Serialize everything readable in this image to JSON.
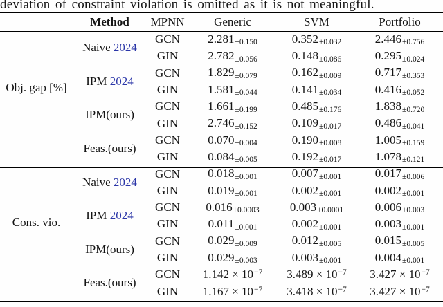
{
  "caption": "deviation of constraint violation is omitted as it is not meaningful.",
  "colors": {
    "text": "#141414",
    "citation_link": "#2b36a8",
    "rule_heavy": "#000000",
    "rule_light": "#5a5a5a"
  },
  "table": {
    "headers": {
      "rowgroup": "",
      "method": "Method",
      "mpnn": "MPNN",
      "cols": [
        "Generic",
        "SVM",
        "Portfolio"
      ]
    },
    "sections": [
      {
        "label": "Obj. gap [%]",
        "groups": [
          {
            "method": "Naive",
            "cite": "2024",
            "rows": [
              {
                "mpnn": "GCN",
                "cells": [
                  {
                    "v": "2.281",
                    "pm": "0.150"
                  },
                  {
                    "v": "0.352",
                    "pm": "0.032"
                  },
                  {
                    "v": "2.446",
                    "pm": "0.756"
                  }
                ]
              },
              {
                "mpnn": "GIN",
                "cells": [
                  {
                    "v": "2.782",
                    "pm": "0.056"
                  },
                  {
                    "v": "0.148",
                    "pm": "0.086"
                  },
                  {
                    "v": "0.295",
                    "pm": "0.024"
                  }
                ]
              }
            ]
          },
          {
            "method": "IPM",
            "cite": "2024",
            "rows": [
              {
                "mpnn": "GCN",
                "cells": [
                  {
                    "v": "1.829",
                    "pm": "0.079"
                  },
                  {
                    "v": "0.162",
                    "pm": "0.009"
                  },
                  {
                    "v": "0.717",
                    "pm": "0.353"
                  }
                ]
              },
              {
                "mpnn": "GIN",
                "cells": [
                  {
                    "v": "1.581",
                    "pm": "0.044"
                  },
                  {
                    "v": "0.141",
                    "pm": "0.034"
                  },
                  {
                    "v": "0.416",
                    "pm": "0.052"
                  }
                ]
              }
            ]
          },
          {
            "method": "IPM(ours)",
            "cite": null,
            "rows": [
              {
                "mpnn": "GCN",
                "cells": [
                  {
                    "v": "1.661",
                    "pm": "0.199"
                  },
                  {
                    "v": "0.485",
                    "pm": "0.176"
                  },
                  {
                    "v": "1.838",
                    "pm": "0.720"
                  }
                ]
              },
              {
                "mpnn": "GIN",
                "cells": [
                  {
                    "v": "2.746",
                    "pm": "0.152"
                  },
                  {
                    "v": "0.109",
                    "pm": "0.017"
                  },
                  {
                    "v": "0.486",
                    "pm": "0.041"
                  }
                ]
              }
            ]
          },
          {
            "method": "Feas.(ours)",
            "cite": null,
            "rows": [
              {
                "mpnn": "GCN",
                "cells": [
                  {
                    "v": "0.070",
                    "pm": "0.004"
                  },
                  {
                    "v": "0.190",
                    "pm": "0.008"
                  },
                  {
                    "v": "1.005",
                    "pm": "0.159"
                  }
                ]
              },
              {
                "mpnn": "GIN",
                "cells": [
                  {
                    "v": "0.084",
                    "pm": "0.005"
                  },
                  {
                    "v": "0.192",
                    "pm": "0.017"
                  },
                  {
                    "v": "1.078",
                    "pm": "0.121"
                  }
                ]
              }
            ]
          }
        ]
      },
      {
        "label": "Cons. vio.",
        "groups": [
          {
            "method": "Naive",
            "cite": "2024",
            "rows": [
              {
                "mpnn": "GCN",
                "cells": [
                  {
                    "v": "0.018",
                    "pm": "0.001"
                  },
                  {
                    "v": "0.007",
                    "pm": "0.001"
                  },
                  {
                    "v": "0.017",
                    "pm": "0.006"
                  }
                ]
              },
              {
                "mpnn": "GIN",
                "cells": [
                  {
                    "v": "0.019",
                    "pm": "0.001"
                  },
                  {
                    "v": "0.002",
                    "pm": "0.001"
                  },
                  {
                    "v": "0.002",
                    "pm": "0.001"
                  }
                ]
              }
            ]
          },
          {
            "method": "IPM",
            "cite": "2024",
            "rows": [
              {
                "mpnn": "GCN",
                "cells": [
                  {
                    "v": "0.016",
                    "pm": "0.0003"
                  },
                  {
                    "v": "0.003",
                    "pm": "0.0001"
                  },
                  {
                    "v": "0.006",
                    "pm": "0.003"
                  }
                ]
              },
              {
                "mpnn": "GIN",
                "cells": [
                  {
                    "v": "0.011",
                    "pm": "0.001"
                  },
                  {
                    "v": "0.002",
                    "pm": "0.001"
                  },
                  {
                    "v": "0.003",
                    "pm": "0.001"
                  }
                ]
              }
            ]
          },
          {
            "method": "IPM(ours)",
            "cite": null,
            "rows": [
              {
                "mpnn": "GCN",
                "cells": [
                  {
                    "v": "0.029",
                    "pm": "0.009"
                  },
                  {
                    "v": "0.012",
                    "pm": "0.005"
                  },
                  {
                    "v": "0.015",
                    "pm": "0.005"
                  }
                ]
              },
              {
                "mpnn": "GIN",
                "cells": [
                  {
                    "v": "0.029",
                    "pm": "0.003"
                  },
                  {
                    "v": "0.003",
                    "pm": "0.001"
                  },
                  {
                    "v": "0.004",
                    "pm": "0.001"
                  }
                ]
              }
            ]
          },
          {
            "method": "Feas.(ours)",
            "cite": null,
            "rows": [
              {
                "mpnn": "GCN",
                "cells": [
                  {
                    "sci": "1.142",
                    "exp": "−7"
                  },
                  {
                    "sci": "3.489",
                    "exp": "−7"
                  },
                  {
                    "sci": "3.427",
                    "exp": "−7"
                  }
                ]
              },
              {
                "mpnn": "GIN",
                "cells": [
                  {
                    "sci": "1.167",
                    "exp": "−7"
                  },
                  {
                    "sci": "3.418",
                    "exp": "−7"
                  },
                  {
                    "sci": "3.427",
                    "exp": "−7"
                  }
                ]
              }
            ]
          }
        ]
      }
    ]
  }
}
